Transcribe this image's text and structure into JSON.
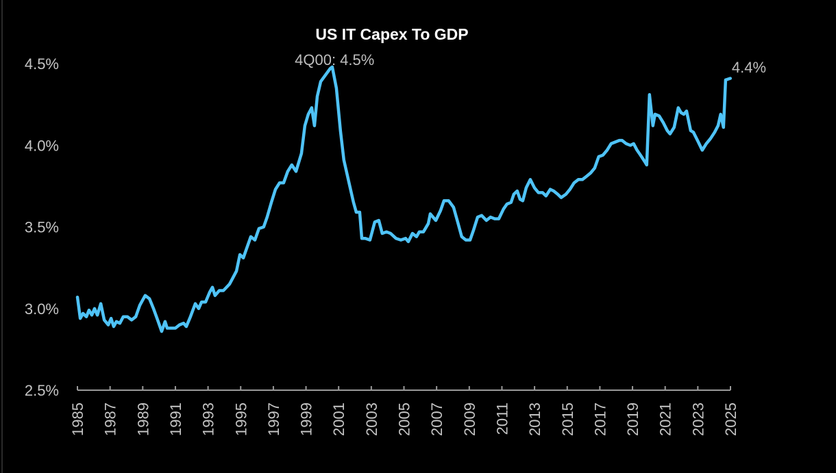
{
  "chart_data": {
    "type": "line",
    "title": "US IT Capex To GDP",
    "xlabel": "",
    "ylabel": "",
    "xlim": [
      1985,
      2025
    ],
    "ylim": [
      2.5,
      4.5
    ],
    "grid": false,
    "legend": "none",
    "y_ticks": [
      2.5,
      3.0,
      3.5,
      4.0,
      4.5
    ],
    "y_tick_labels": [
      "2.5%",
      "3.0%",
      "3.5%",
      "4.0%",
      "4.5%"
    ],
    "x_ticks": [
      1985,
      1987,
      1989,
      1991,
      1993,
      1995,
      1997,
      1999,
      2001,
      2003,
      2005,
      2007,
      2009,
      2011,
      2013,
      2015,
      2017,
      2019,
      2021,
      2023,
      2025
    ],
    "x_tick_labels": [
      "1985",
      "1987",
      "1989",
      "1991",
      "1993",
      "1995",
      "1997",
      "1999",
      "2001",
      "2003",
      "2005",
      "2007",
      "2009",
      "2011",
      "2013",
      "2015",
      "2017",
      "2019",
      "2021",
      "2023",
      "2025"
    ],
    "annotations": [
      {
        "text": "4Q00: 4.5%",
        "x": 2000.75,
        "y": 4.5
      },
      {
        "text": "4.4%",
        "x": 2025,
        "y": 4.41
      }
    ],
    "series": [
      {
        "name": "US IT Capex To GDP",
        "color": "#4fc3f7",
        "x": [
          1985.0,
          1985.17,
          1985.34,
          1985.55,
          1985.71,
          1985.88,
          1986.05,
          1986.22,
          1986.43,
          1986.64,
          1986.89,
          1987.06,
          1987.22,
          1987.39,
          1987.6,
          1987.81,
          1988.06,
          1988.32,
          1988.57,
          1988.82,
          1989.15,
          1989.41,
          1989.66,
          1989.91,
          1990.16,
          1990.37,
          1990.5,
          1990.75,
          1991.0,
          1991.25,
          1991.5,
          1991.67,
          1991.92,
          1992.22,
          1992.43,
          1992.6,
          1992.85,
          1993.1,
          1993.27,
          1993.43,
          1993.69,
          1993.94,
          1994.32,
          1994.53,
          1994.74,
          1994.95,
          1995.16,
          1995.37,
          1995.62,
          1995.87,
          1996.12,
          1996.41,
          1996.62,
          1996.88,
          1997.13,
          1997.38,
          1997.63,
          1997.88,
          1998.13,
          1998.39,
          1998.72,
          1998.93,
          1999.14,
          1999.35,
          1999.52,
          1999.69,
          1999.9,
          2000.19,
          2000.48,
          2000.61,
          2000.86,
          2001.11,
          2001.32,
          2001.66,
          2001.91,
          2002.08,
          2002.29,
          2002.42,
          2002.63,
          2002.92,
          2003.21,
          2003.46,
          2003.67,
          2003.93,
          2004.18,
          2004.51,
          2004.81,
          2005.1,
          2005.27,
          2005.52,
          2005.77,
          2005.94,
          2006.19,
          2006.49,
          2006.61,
          2006.95,
          2007.24,
          2007.45,
          2007.74,
          2008.04,
          2008.29,
          2008.54,
          2008.79,
          2009.05,
          2009.26,
          2009.51,
          2009.76,
          2010.05,
          2010.3,
          2010.56,
          2010.81,
          2011.1,
          2011.31,
          2011.56,
          2011.73,
          2011.94,
          2012.11,
          2012.28,
          2012.49,
          2012.74,
          2012.99,
          2013.24,
          2013.49,
          2013.7,
          2013.96,
          2014.17,
          2014.42,
          2014.63,
          2014.92,
          2015.17,
          2015.42,
          2015.68,
          2015.93,
          2016.18,
          2016.43,
          2016.68,
          2016.93,
          2017.19,
          2017.44,
          2017.69,
          2017.94,
          2018.19,
          2018.36,
          2018.61,
          2018.87,
          2019.07,
          2019.28,
          2019.49,
          2019.75,
          2019.87,
          2020.04,
          2020.25,
          2020.38,
          2020.63,
          2020.88,
          2021.13,
          2021.3,
          2021.55,
          2021.8,
          2021.97,
          2022.14,
          2022.31,
          2022.56,
          2022.73,
          2022.98,
          2023.27,
          2023.52,
          2023.77,
          2024.03,
          2024.24,
          2024.4,
          2024.57,
          2024.7,
          2024.99
        ],
        "y": [
          3.07,
          2.94,
          2.97,
          2.95,
          2.99,
          2.96,
          3.0,
          2.96,
          3.03,
          2.93,
          2.9,
          2.94,
          2.89,
          2.92,
          2.91,
          2.95,
          2.95,
          2.93,
          2.95,
          3.02,
          3.08,
          3.06,
          3.0,
          2.93,
          2.86,
          2.92,
          2.88,
          2.88,
          2.88,
          2.9,
          2.91,
          2.89,
          2.95,
          3.03,
          3.0,
          3.04,
          3.04,
          3.1,
          3.13,
          3.08,
          3.11,
          3.11,
          3.15,
          3.19,
          3.23,
          3.33,
          3.31,
          3.37,
          3.44,
          3.42,
          3.49,
          3.5,
          3.56,
          3.65,
          3.73,
          3.77,
          3.77,
          3.84,
          3.88,
          3.84,
          3.95,
          4.12,
          4.19,
          4.23,
          4.12,
          4.3,
          4.39,
          4.43,
          4.47,
          4.48,
          4.35,
          4.09,
          3.91,
          3.76,
          3.65,
          3.59,
          3.59,
          3.43,
          3.43,
          3.42,
          3.53,
          3.54,
          3.46,
          3.47,
          3.46,
          3.43,
          3.42,
          3.43,
          3.41,
          3.46,
          3.44,
          3.47,
          3.47,
          3.52,
          3.58,
          3.54,
          3.6,
          3.66,
          3.66,
          3.62,
          3.53,
          3.44,
          3.42,
          3.42,
          3.48,
          3.56,
          3.57,
          3.54,
          3.56,
          3.55,
          3.55,
          3.61,
          3.64,
          3.65,
          3.7,
          3.72,
          3.67,
          3.66,
          3.74,
          3.79,
          3.74,
          3.71,
          3.71,
          3.69,
          3.73,
          3.72,
          3.7,
          3.68,
          3.7,
          3.73,
          3.77,
          3.79,
          3.79,
          3.81,
          3.83,
          3.86,
          3.93,
          3.94,
          3.97,
          4.01,
          4.02,
          4.03,
          4.03,
          4.01,
          4.0,
          4.01,
          3.97,
          3.94,
          3.9,
          3.88,
          4.31,
          4.12,
          4.19,
          4.18,
          4.14,
          4.09,
          4.07,
          4.11,
          4.23,
          4.2,
          4.19,
          4.21,
          4.09,
          4.08,
          4.03,
          3.97,
          4.01,
          4.04,
          4.08,
          4.12,
          4.19,
          4.11,
          4.4,
          4.41
        ]
      }
    ]
  }
}
